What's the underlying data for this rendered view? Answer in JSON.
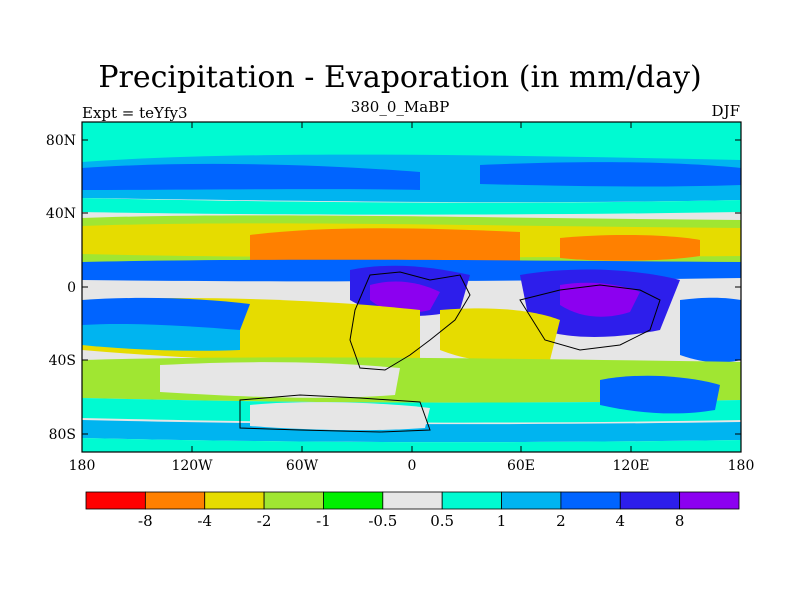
{
  "title": "Precipitation - Evaporation (in mm/day)",
  "subtitle_left": "Expt = teYfy3",
  "subtitle_center": "380_0_MaBP",
  "subtitle_right": "DJF",
  "map": {
    "lat_ticks": [
      "80N",
      "40N",
      "0",
      "40S",
      "80S"
    ],
    "lon_ticks": [
      "180",
      "120W",
      "60W",
      "0",
      "60E",
      "120E",
      "180"
    ]
  },
  "colorbar": {
    "labels": [
      "-8",
      "-4",
      "-2",
      "-1",
      "-0.5",
      "0.5",
      "1",
      "2",
      "4",
      "8"
    ],
    "colors": [
      "#ff0000",
      "#ff8000",
      "#e6dc00",
      "#a0e632",
      "#00ef00",
      "#e6e6e6",
      "#00fad2",
      "#00b4f0",
      "#0064ff",
      "#2d1eeb",
      "#8c00f0"
    ]
  }
}
